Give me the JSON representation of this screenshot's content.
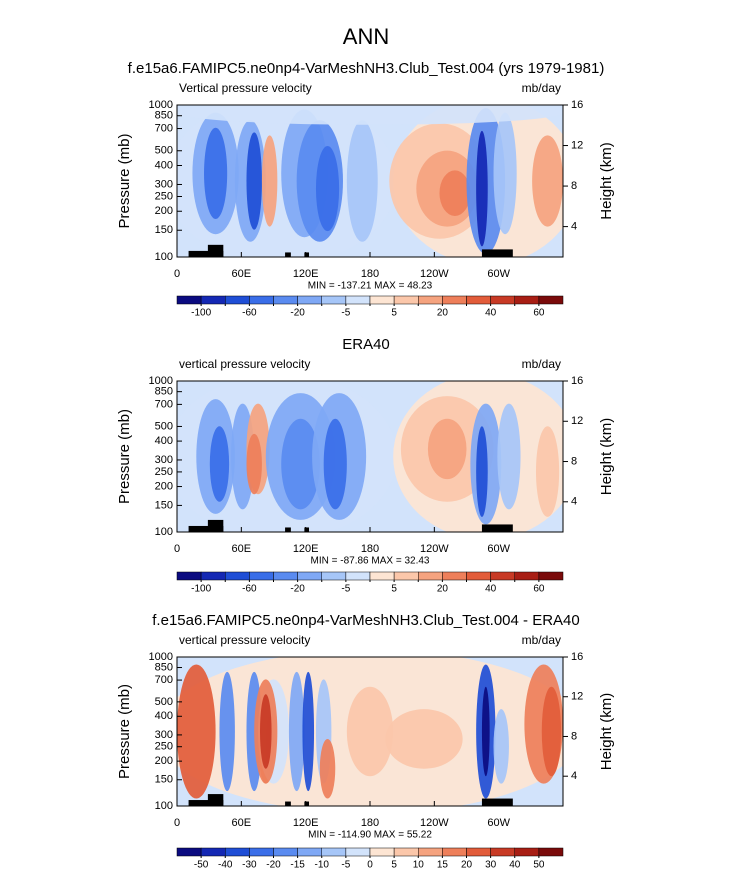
{
  "title": "ANN",
  "chart_data": [
    {
      "type": "contour",
      "title": "f.e15a6.FAMIPC5.ne0np4-VarMeshNH3.Club_Test.004 (yrs 1979-1981)",
      "subtitle": "Vertical pressure velocity",
      "units": "mb/day",
      "ylabel": "Pressure (mb)",
      "y2label": "Height (km)",
      "ylog": true,
      "ylim": [
        1000,
        100
      ],
      "yticks": [
        100,
        150,
        200,
        250,
        300,
        400,
        500,
        700,
        850,
        1000
      ],
      "y2lim": [
        1,
        16
      ],
      "y2ticks": [
        4,
        8,
        12,
        16
      ],
      "xlim": [
        0,
        360
      ],
      "xticks": [
        0,
        {
          "value": 60,
          "label": "60E"
        },
        {
          "value": 120,
          "label": "120E"
        },
        180,
        {
          "value": 240,
          "label": "120W"
        },
        {
          "value": 300,
          "label": "60W"
        }
      ],
      "stats": "MIN = -137.21  MAX = 48.23",
      "levels": [
        -100,
        -80,
        -60,
        -40,
        -20,
        -10,
        -5,
        0,
        5,
        10,
        20,
        30,
        40,
        50,
        60
      ],
      "colors": [
        "#0b0b80",
        "#1428b4",
        "#1f4ed6",
        "#3a6ee8",
        "#5a8bf0",
        "#7fa8f5",
        "#a6c6f8",
        "#d2e3fb",
        "#fde5d3",
        "#fbc7aa",
        "#f5a37f",
        "#ee7f5a",
        "#e25c3a",
        "#c83a25",
        "#a81e14",
        "#7a0a0a"
      ]
    },
    {
      "type": "contour",
      "title": "ERA40",
      "subtitle": "vertical pressure velocity",
      "units": "mb/day",
      "ylabel": "Pressure (mb)",
      "y2label": "Height (km)",
      "ylog": true,
      "ylim": [
        1000,
        100
      ],
      "yticks": [
        100,
        150,
        200,
        250,
        300,
        400,
        500,
        700,
        850,
        1000
      ],
      "y2lim": [
        1,
        16
      ],
      "y2ticks": [
        4,
        8,
        12,
        16
      ],
      "xlim": [
        0,
        360
      ],
      "xticks": [
        0,
        {
          "value": 60,
          "label": "60E"
        },
        {
          "value": 120,
          "label": "120E"
        },
        180,
        {
          "value": 240,
          "label": "120W"
        },
        {
          "value": 300,
          "label": "60W"
        }
      ],
      "stats": "MIN = -87.86  MAX = 32.43",
      "levels": [
        -100,
        -80,
        -60,
        -40,
        -20,
        -10,
        -5,
        0,
        5,
        10,
        20,
        30,
        40,
        50,
        60
      ],
      "colors": [
        "#0b0b80",
        "#1428b4",
        "#1f4ed6",
        "#3a6ee8",
        "#5a8bf0",
        "#7fa8f5",
        "#a6c6f8",
        "#d2e3fb",
        "#fde5d3",
        "#fbc7aa",
        "#f5a37f",
        "#ee7f5a",
        "#e25c3a",
        "#c83a25",
        "#a81e14",
        "#7a0a0a"
      ]
    },
    {
      "type": "contour",
      "title": "f.e15a6.FAMIPC5.ne0np4-VarMeshNH3.Club_Test.004 - ERA40",
      "subtitle": "vertical pressure velocity",
      "units": "mb/day",
      "ylabel": "Pressure (mb)",
      "y2label": "Height (km)",
      "ylog": true,
      "ylim": [
        1000,
        100
      ],
      "yticks": [
        100,
        150,
        200,
        250,
        300,
        400,
        500,
        700,
        850,
        1000
      ],
      "y2lim": [
        1,
        16
      ],
      "y2ticks": [
        4,
        8,
        12,
        16
      ],
      "xlim": [
        0,
        360
      ],
      "xticks": [
        0,
        {
          "value": 60,
          "label": "60E"
        },
        {
          "value": 120,
          "label": "120E"
        },
        180,
        {
          "value": 240,
          "label": "120W"
        },
        {
          "value": 300,
          "label": "60W"
        }
      ],
      "stats": "MIN = -114.90  MAX = 55.22",
      "levels": [
        -50,
        -40,
        -30,
        -20,
        -15,
        -10,
        -5,
        0,
        5,
        10,
        15,
        20,
        30,
        40,
        50
      ],
      "colors": [
        "#0b0b80",
        "#1428b4",
        "#1f4ed6",
        "#3a6ee8",
        "#5a8bf0",
        "#7fa8f5",
        "#a6c6f8",
        "#d2e3fb",
        "#fde5d3",
        "#fbc7aa",
        "#f5a37f",
        "#ee7f5a",
        "#e25c3a",
        "#c83a25",
        "#a81e14",
        "#7a0a0a"
      ]
    }
  ]
}
